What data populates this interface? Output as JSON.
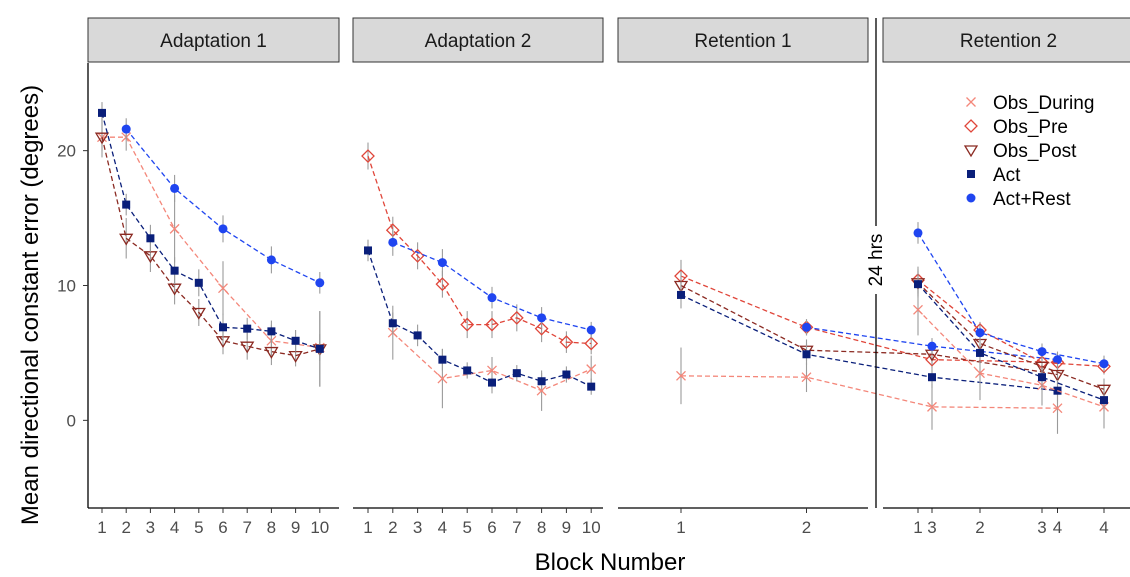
{
  "chart_data": {
    "type": "line",
    "xlabel": "Block Number",
    "ylabel": "Mean directional constant error (degrees)",
    "ylim": [
      -6.5,
      26.5
    ],
    "yticks": [
      0,
      10,
      20
    ],
    "grid": false,
    "legend_position": "top-right",
    "annotation": "24 hrs",
    "series_styles": [
      {
        "name": "Obs_During",
        "color": "#f4877a",
        "marker": "cross"
      },
      {
        "name": "Obs_Pre",
        "color": "#e0463a",
        "marker": "diamond-open"
      },
      {
        "name": "Obs_Post",
        "color": "#8b2a22",
        "marker": "triangle-down-open"
      },
      {
        "name": "Act",
        "color": "#0a1f7a",
        "marker": "square"
      },
      {
        "name": "Act+Rest",
        "color": "#1f45f0",
        "marker": "circle"
      }
    ],
    "panels": [
      {
        "title": "Adaptation 1",
        "x": [
          1,
          2,
          3,
          4,
          5,
          6,
          7,
          8,
          9,
          10
        ],
        "series": [
          {
            "name": "Obs_During",
            "values": [
              21.0,
              21.0,
              null,
              14.2,
              null,
              9.8,
              null,
              5.9,
              null,
              5.4
            ],
            "errors": [
              1.0,
              1.0,
              null,
              2.5,
              null,
              2.0,
              null,
              1.2,
              null,
              1.0
            ]
          },
          {
            "name": "Obs_Pre",
            "values": [
              null,
              null,
              null,
              null,
              null,
              null,
              null,
              null,
              null,
              null
            ],
            "errors": [
              null,
              null,
              null,
              null,
              null,
              null,
              null,
              null,
              null,
              null
            ]
          },
          {
            "name": "Obs_Post",
            "values": [
              21.0,
              13.5,
              12.2,
              9.8,
              8.0,
              5.9,
              5.5,
              5.1,
              4.8,
              5.3
            ],
            "errors": [
              1.5,
              1.5,
              1.2,
              1.2,
              1.0,
              1.0,
              1.0,
              1.0,
              0.8,
              2.8
            ]
          },
          {
            "name": "Act",
            "values": [
              22.8,
              16.0,
              13.5,
              11.1,
              10.2,
              6.9,
              6.8,
              6.6,
              5.9,
              5.3
            ],
            "errors": [
              0.8,
              0.8,
              1.0,
              1.0,
              1.0,
              1.0,
              0.8,
              0.8,
              0.8,
              2.8
            ]
          },
          {
            "name": "Act+Rest",
            "values": [
              null,
              21.6,
              null,
              17.2,
              null,
              14.2,
              null,
              11.9,
              null,
              10.2
            ],
            "errors": [
              null,
              0.8,
              null,
              1.0,
              null,
              1.0,
              null,
              1.0,
              null,
              0.8
            ]
          }
        ]
      },
      {
        "title": "Adaptation 2",
        "x": [
          1,
          2,
          3,
          4,
          5,
          6,
          7,
          8,
          9,
          10
        ],
        "series": [
          {
            "name": "Obs_During",
            "values": [
              null,
              6.5,
              null,
              3.1,
              null,
              3.7,
              null,
              2.2,
              null,
              3.8
            ],
            "errors": [
              null,
              2.0,
              null,
              2.2,
              null,
              1.0,
              null,
              1.5,
              null,
              1.0
            ]
          },
          {
            "name": "Obs_Pre",
            "values": [
              19.6,
              14.1,
              12.2,
              10.1,
              7.1,
              7.1,
              7.6,
              6.8,
              5.8,
              5.7
            ],
            "errors": [
              1.0,
              1.0,
              1.0,
              1.0,
              1.0,
              1.0,
              1.0,
              1.0,
              0.8,
              0.8
            ]
          },
          {
            "name": "Obs_Post",
            "values": [
              null,
              null,
              null,
              null,
              null,
              null,
              null,
              null,
              null,
              null
            ],
            "errors": [
              null,
              null,
              null,
              null,
              null,
              null,
              null,
              null,
              null,
              null
            ]
          },
          {
            "name": "Act",
            "values": [
              12.6,
              7.2,
              6.3,
              4.5,
              3.7,
              2.8,
              3.5,
              2.9,
              3.4,
              2.5
            ],
            "errors": [
              0.8,
              0.8,
              0.8,
              0.8,
              0.6,
              0.8,
              0.6,
              0.6,
              0.6,
              0.6
            ]
          },
          {
            "name": "Act+Rest",
            "values": [
              null,
              13.2,
              null,
              11.7,
              null,
              9.1,
              null,
              7.6,
              null,
              6.7
            ],
            "errors": [
              null,
              1.0,
              null,
              1.0,
              null,
              0.8,
              null,
              0.8,
              null,
              0.6
            ]
          }
        ]
      },
      {
        "title": "Retention 1",
        "x": [
          1,
          2,
          3,
          4
        ],
        "series": [
          {
            "name": "Obs_During",
            "values": [
              3.3,
              3.2,
              1.0,
              0.9
            ],
            "errors": [
              2.1,
              1.1,
              1.7,
              1.9
            ]
          },
          {
            "name": "Obs_Pre",
            "values": [
              10.7,
              6.9,
              4.5,
              4.3
            ],
            "errors": [
              1.2,
              0.6,
              0.6,
              0.6
            ]
          },
          {
            "name": "Obs_Post",
            "values": [
              10.0,
              5.2,
              4.9,
              3.4
            ],
            "errors": [
              1.0,
              0.8,
              0.8,
              0.8
            ]
          },
          {
            "name": "Act",
            "values": [
              9.3,
              4.9,
              3.2,
              2.2
            ],
            "errors": [
              1.0,
              0.8,
              0.8,
              0.8
            ]
          },
          {
            "name": "Act+Rest",
            "values": [
              null,
              6.9,
              5.5,
              4.5
            ],
            "errors": [
              null,
              0.6,
              0.6,
              0.6
            ]
          }
        ]
      },
      {
        "title": "Retention 2",
        "x": [
          1,
          2,
          3,
          4
        ],
        "series": [
          {
            "name": "Obs_During",
            "values": [
              8.2,
              3.5,
              2.6,
              1.0
            ],
            "errors": [
              1.9,
              2.0,
              1.5,
              1.6
            ]
          },
          {
            "name": "Obs_Pre",
            "values": [
              10.4,
              6.7,
              4.3,
              4.0
            ],
            "errors": [
              1.0,
              0.6,
              0.6,
              0.6
            ]
          },
          {
            "name": "Obs_Post",
            "values": [
              10.2,
              5.7,
              4.0,
              2.3
            ],
            "errors": [
              1.0,
              0.8,
              0.8,
              0.8
            ]
          },
          {
            "name": "Act",
            "values": [
              10.1,
              5.0,
              3.2,
              1.5
            ],
            "errors": [
              1.0,
              0.8,
              0.8,
              0.8
            ]
          },
          {
            "name": "Act+Rest",
            "values": [
              13.9,
              6.5,
              5.1,
              4.2
            ],
            "errors": [
              0.8,
              0.6,
              0.6,
              0.6
            ]
          }
        ]
      }
    ]
  }
}
